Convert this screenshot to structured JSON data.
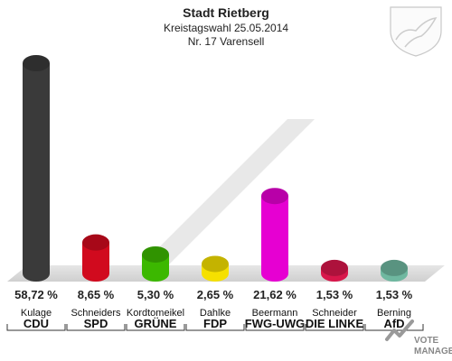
{
  "chart_data": {
    "type": "bar",
    "title": "Stadt Rietberg",
    "subtitle": "Kreistagswahl 25.05.2014",
    "subtitle2": "Nr. 17 Varensell",
    "categories": [
      "CDU",
      "SPD",
      "GRÜNE",
      "FDP",
      "FWG-UWG",
      "DIE LINKE",
      "AfD"
    ],
    "candidates": [
      "Kulage",
      "Schneiders",
      "Kordtomeikel",
      "Dahlke",
      "Beermann",
      "Schneider",
      "Berning"
    ],
    "values": [
      58.72,
      8.65,
      5.3,
      2.65,
      21.62,
      1.53,
      1.53
    ],
    "value_labels": [
      "58,72 %",
      "8,65 %",
      "5,30 %",
      "2,65 %",
      "21,62 %",
      "1,53 %",
      "1,53 %"
    ],
    "colors": [
      "#3a3a3a",
      "#d10a1e",
      "#3cb800",
      "#f5e000",
      "#e600d2",
      "#d8174b",
      "#6fb8a0"
    ],
    "ylim": [
      0,
      60
    ]
  },
  "branding": {
    "line1": "VOTE",
    "line2": "MANAGER"
  }
}
